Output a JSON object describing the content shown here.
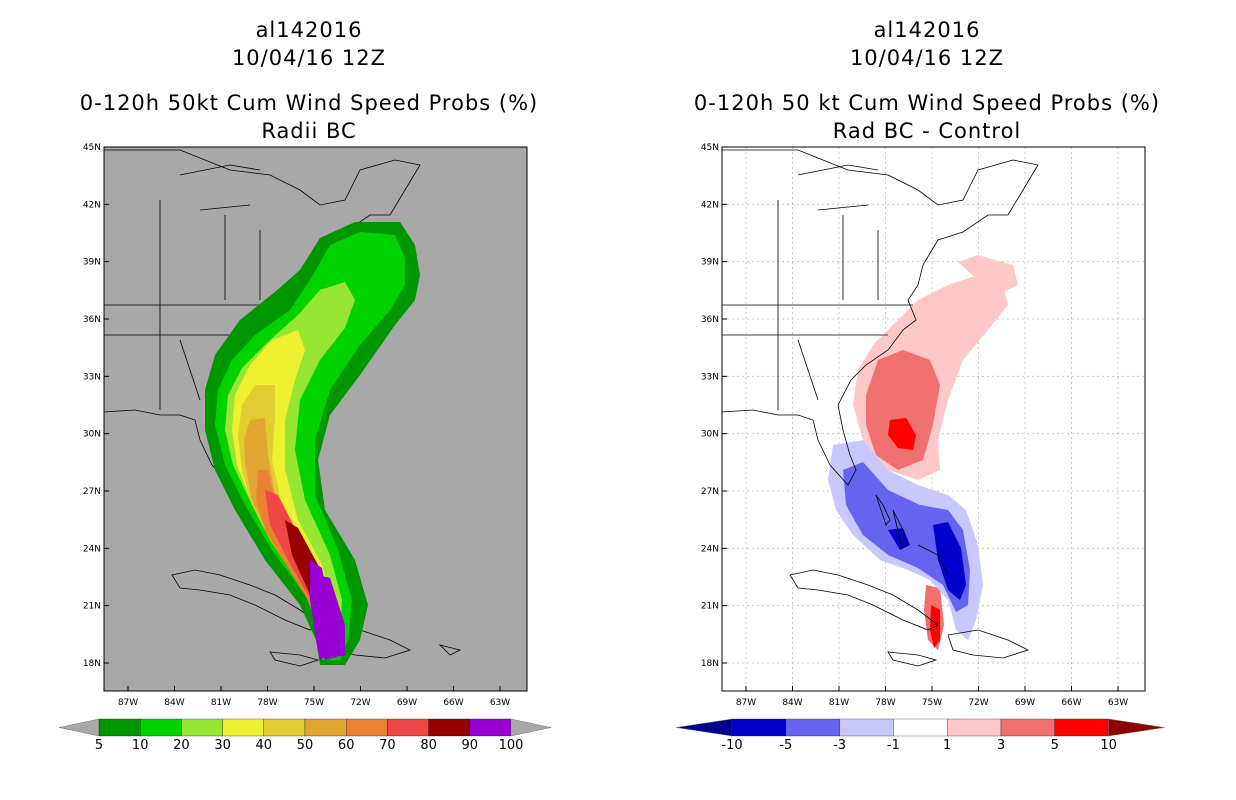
{
  "panels": [
    {
      "storm_id": "al142016",
      "date": "10/04/16 12Z",
      "title": "0-120h 50kt Cum Wind Speed Probs (%)",
      "subtitle": "Radii BC",
      "lat_labels": [
        "45N",
        "42N",
        "39N",
        "36N",
        "33N",
        "30N",
        "27N",
        "24N",
        "21N",
        "18N"
      ],
      "lon_labels": [
        "87W",
        "84W",
        "81W",
        "78W",
        "75W",
        "72W",
        "69W",
        "66W",
        "63W"
      ],
      "background": "#a8a8a8",
      "colorbar": {
        "colors": [
          "#009600",
          "#00d200",
          "#96e632",
          "#f0f032",
          "#e1cd32",
          "#e1a532",
          "#eb8232",
          "#f04646",
          "#960000",
          "#9600d2"
        ],
        "labels": [
          "5",
          "10",
          "20",
          "30",
          "40",
          "50",
          "60",
          "70",
          "80",
          "90",
          "100"
        ],
        "end_color": "#a8a8a8"
      }
    },
    {
      "storm_id": "al142016",
      "date": "10/04/16 12Z",
      "title": "0-120h 50 kt Cum Wind Speed Probs (%)",
      "subtitle": "Rad BC - Control",
      "lat_labels": [
        "45N",
        "42N",
        "39N",
        "36N",
        "33N",
        "30N",
        "27N",
        "24N",
        "21N",
        "18N"
      ],
      "lon_labels": [
        "87W",
        "84W",
        "81W",
        "78W",
        "75W",
        "72W",
        "69W",
        "66W",
        "63W"
      ],
      "background": "#ffffff",
      "colorbar": {
        "colors": [
          "#0000cd",
          "#6464f0",
          "#c8c8ff",
          "#ffffff",
          "#ffc8c8",
          "#f07070",
          "#ff0000"
        ],
        "labels": [
          "-10",
          "-5",
          "-3",
          "-1",
          "1",
          "3",
          "5",
          "10"
        ],
        "low_end_color": "#00008b",
        "high_end_color": "#8b0000"
      }
    }
  ]
}
